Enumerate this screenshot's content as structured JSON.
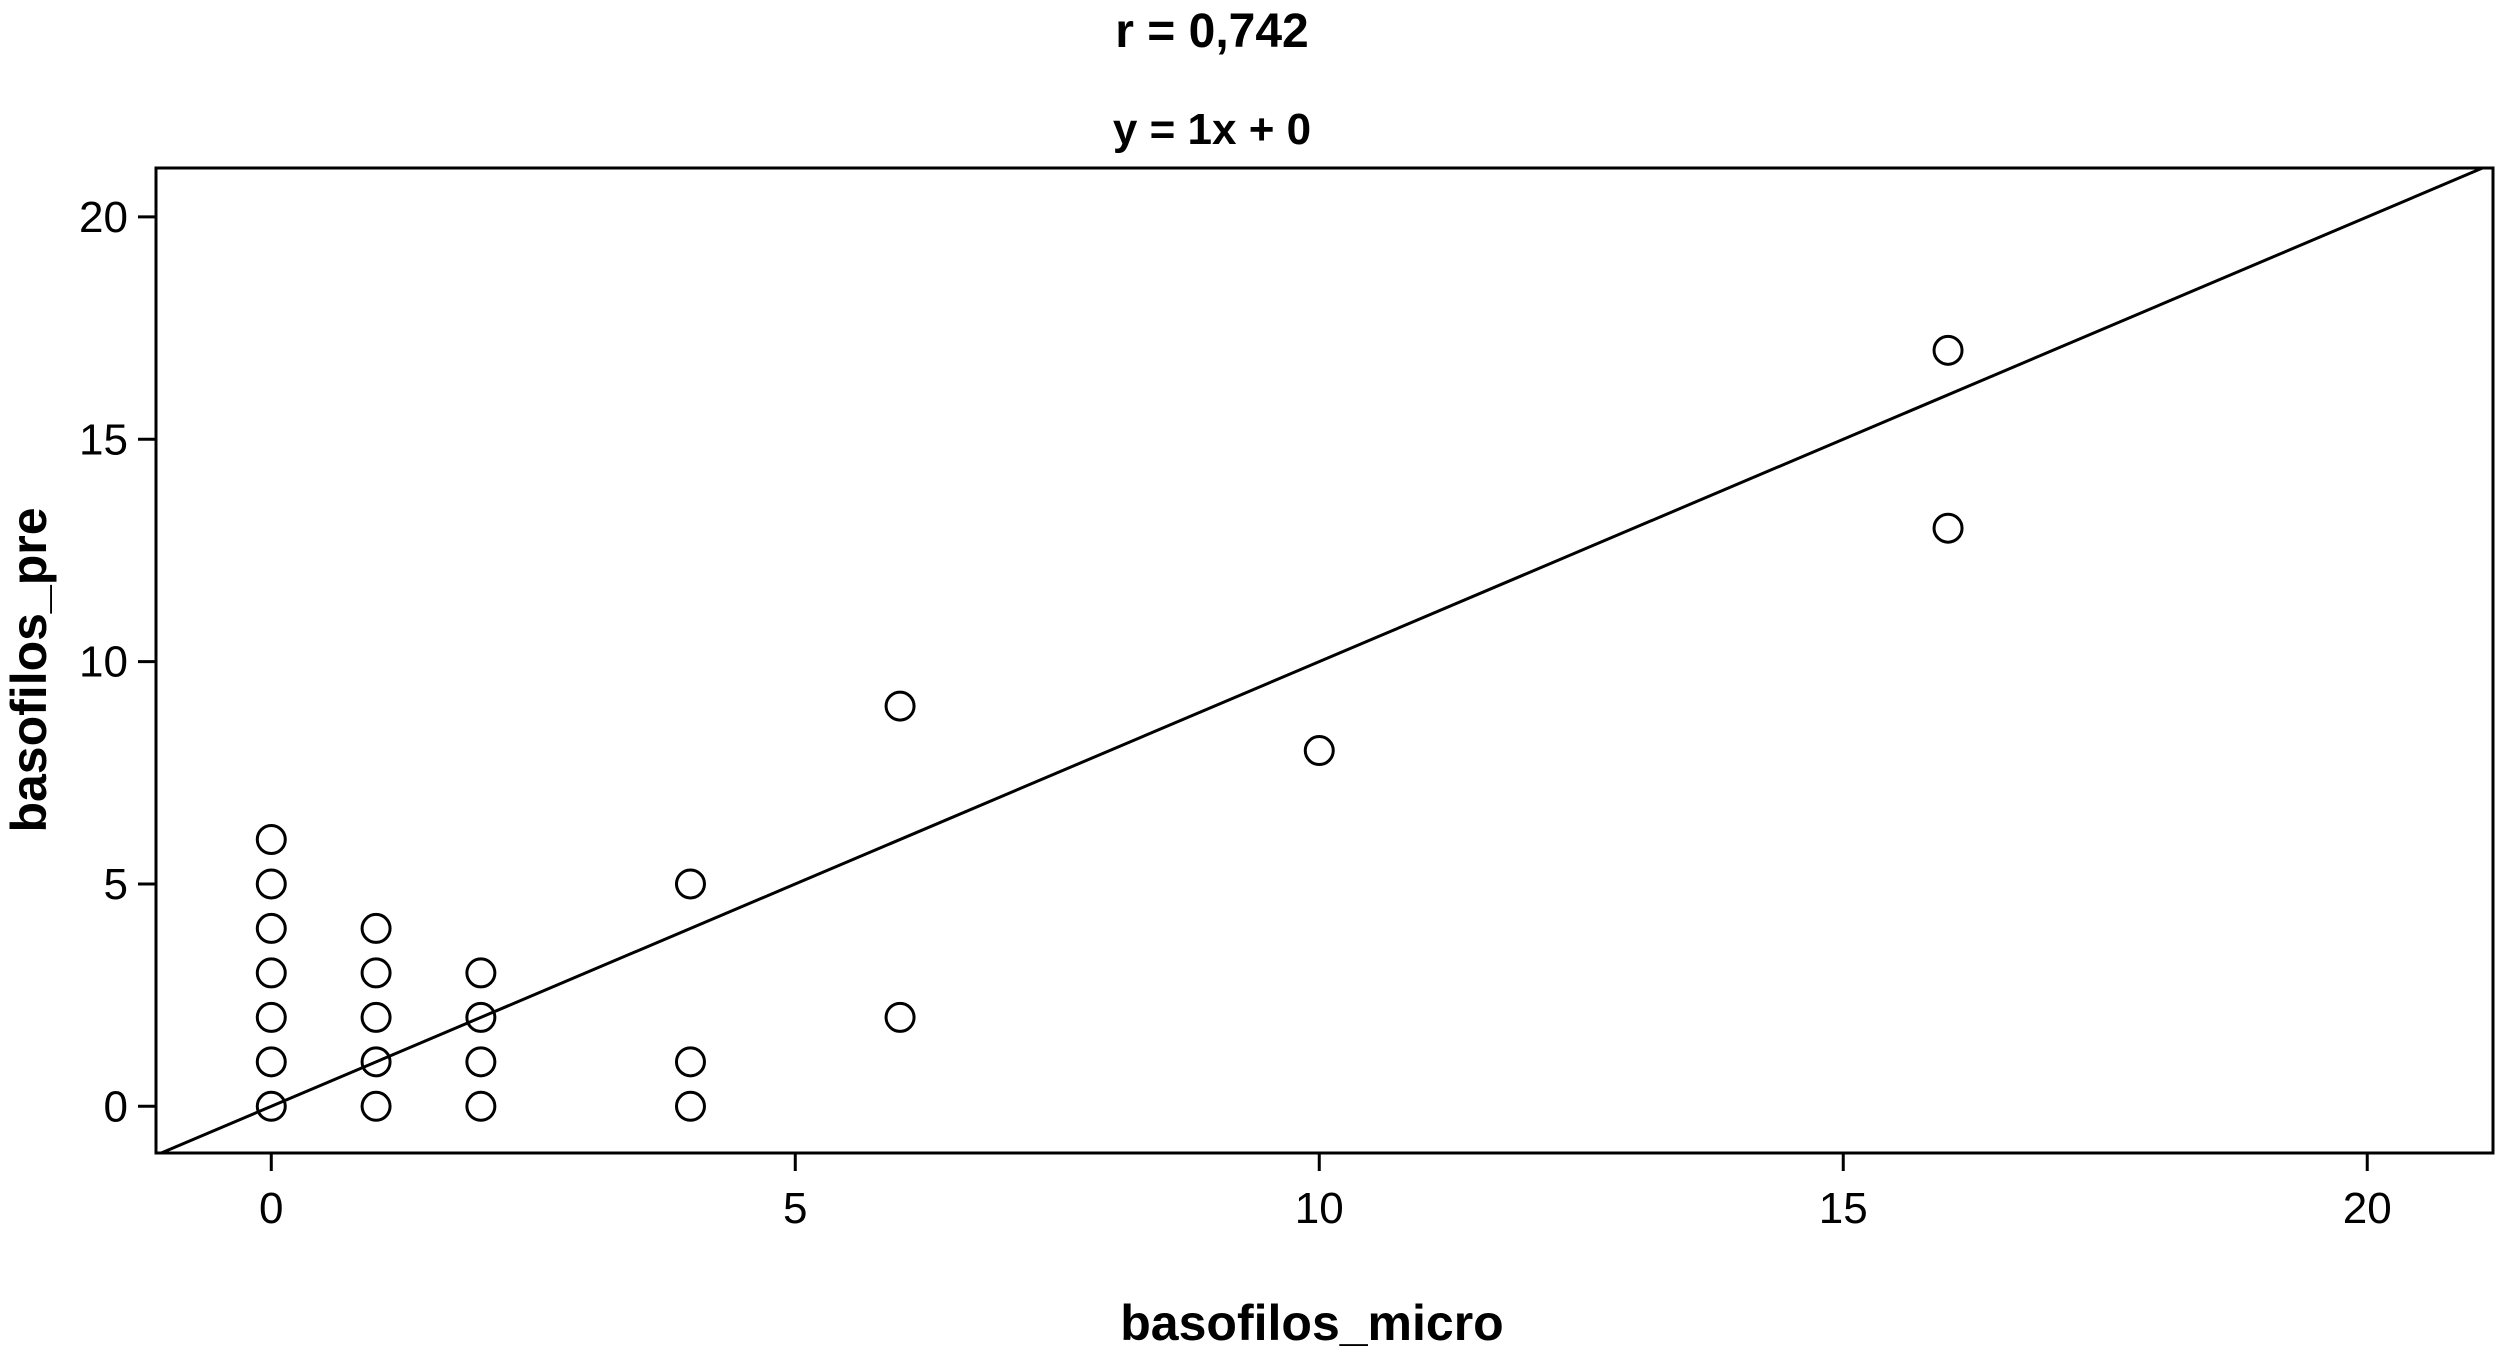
{
  "chart_data": {
    "type": "scatter",
    "title": "r = 0,742",
    "subtitle": "y = 1x + 0",
    "xlabel": "basofilos_micro",
    "ylabel": "basofilos_pre",
    "xlim": [
      -1.1,
      21.2
    ],
    "ylim": [
      -1.05,
      21.1
    ],
    "x_ticks": [
      0,
      5,
      10,
      15,
      20
    ],
    "y_ticks": [
      0,
      5,
      10,
      15,
      20
    ],
    "grid": false,
    "fit_line": {
      "slope": 1,
      "intercept": 0
    },
    "series": [
      {
        "marker": "open-circle",
        "points": [
          {
            "x": 0,
            "y": 0
          },
          {
            "x": 0,
            "y": 1
          },
          {
            "x": 0,
            "y": 2
          },
          {
            "x": 0,
            "y": 3
          },
          {
            "x": 0,
            "y": 4
          },
          {
            "x": 0,
            "y": 5
          },
          {
            "x": 0,
            "y": 6
          },
          {
            "x": 1,
            "y": 0
          },
          {
            "x": 1,
            "y": 1
          },
          {
            "x": 1,
            "y": 2
          },
          {
            "x": 1,
            "y": 3
          },
          {
            "x": 1,
            "y": 4
          },
          {
            "x": 2,
            "y": 0
          },
          {
            "x": 2,
            "y": 1
          },
          {
            "x": 2,
            "y": 2
          },
          {
            "x": 2,
            "y": 3
          },
          {
            "x": 4,
            "y": 0
          },
          {
            "x": 4,
            "y": 1
          },
          {
            "x": 4,
            "y": 5
          },
          {
            "x": 6,
            "y": 2
          },
          {
            "x": 6,
            "y": 9
          },
          {
            "x": 10,
            "y": 8
          },
          {
            "x": 16,
            "y": 13
          },
          {
            "x": 16,
            "y": 17
          }
        ]
      }
    ]
  }
}
